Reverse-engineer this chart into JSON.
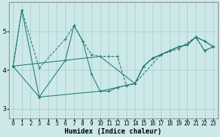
{
  "bg_color": "#cce8e8",
  "grid_color": "#aacfcf",
  "line_color": "#1e7b6e",
  "xlabel": "Humidex (Indice chaleur)",
  "xlabel_fontsize": 7,
  "tick_fontsize": 5.5,
  "xlim": [
    -0.5,
    23.5
  ],
  "ylim": [
    2.75,
    5.75
  ],
  "yticks": [
    3,
    4,
    5
  ],
  "xticks": [
    0,
    1,
    2,
    3,
    4,
    5,
    6,
    7,
    8,
    9,
    10,
    11,
    12,
    13,
    14,
    15,
    16,
    17,
    18,
    19,
    20,
    21,
    22,
    23
  ],
  "series": [
    {
      "x": [
        0,
        1,
        3,
        6,
        7,
        8,
        9,
        10,
        11,
        12,
        13,
        14,
        17,
        19,
        21,
        22,
        23
      ],
      "y": [
        4.1,
        5.55,
        4.05,
        4.8,
        5.15,
        4.75,
        4.4,
        4.35,
        4.35,
        4.35,
        3.6,
        3.65,
        4.4,
        4.55,
        4.85,
        4.5,
        4.6
      ],
      "linestyle": "--",
      "marker": "+"
    },
    {
      "x": [
        0,
        1,
        3,
        6,
        7,
        8,
        9,
        10,
        11,
        12,
        13,
        14,
        15,
        16,
        17,
        18,
        19,
        20,
        21,
        22,
        23
      ],
      "y": [
        4.1,
        5.55,
        3.3,
        4.25,
        5.15,
        4.75,
        3.9,
        3.45,
        3.45,
        3.55,
        3.6,
        3.65,
        4.1,
        4.3,
        4.4,
        4.5,
        4.6,
        4.65,
        4.85,
        4.5,
        4.6
      ],
      "linestyle": "-",
      "marker": "+"
    },
    {
      "x": [
        0,
        3,
        10,
        14,
        15,
        16,
        17,
        18,
        19,
        20,
        21,
        22,
        23
      ],
      "y": [
        4.1,
        3.3,
        3.45,
        3.65,
        4.1,
        4.3,
        4.4,
        4.5,
        4.6,
        4.65,
        4.85,
        4.75,
        4.6
      ],
      "linestyle": "-",
      "marker": "+"
    },
    {
      "x": [
        0,
        10,
        14,
        15,
        16,
        17,
        18,
        19,
        20,
        21,
        22,
        23
      ],
      "y": [
        4.1,
        4.35,
        3.65,
        4.1,
        4.3,
        4.4,
        4.5,
        4.6,
        4.65,
        4.85,
        4.75,
        4.6
      ],
      "linestyle": "-",
      "marker": "+"
    }
  ]
}
